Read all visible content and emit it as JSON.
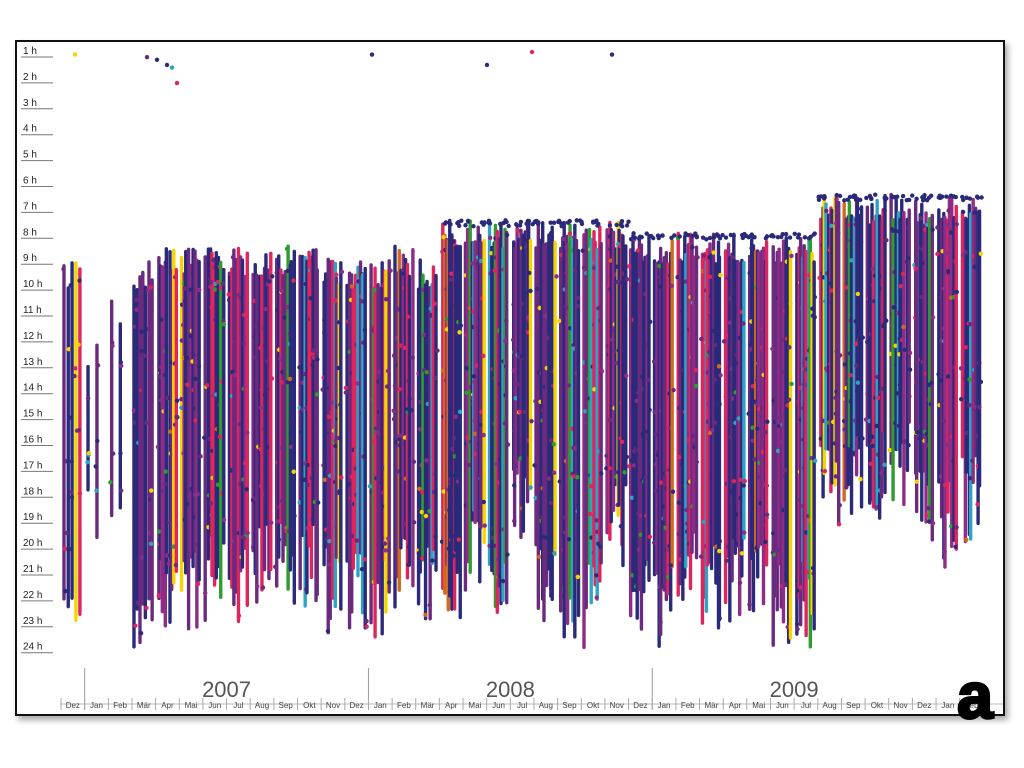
{
  "chart_data": {
    "type": "scatter",
    "y_ticks": [
      "1 h",
      "2 h",
      "3 h",
      "4 h",
      "5 h",
      "6 h",
      "7 h",
      "8 h",
      "9 h",
      "10 h",
      "11 h",
      "12 h",
      "13 h",
      "14 h",
      "15 h",
      "16 h",
      "17 h",
      "18 h",
      "19 h",
      "20 h",
      "21 h",
      "22 h",
      "23 h",
      "24 h"
    ],
    "year_labels": [
      "2007",
      "2008",
      "2009"
    ],
    "month_labels": [
      "Dez",
      "Jan",
      "Feb",
      "Mär",
      "Apr",
      "Mai",
      "Jun",
      "Jul",
      "Aug",
      "Sep",
      "Okt",
      "Nov",
      "Dez",
      "Jan",
      "Feb",
      "Mär",
      "Apr",
      "Mai",
      "Jun",
      "Jul",
      "Aug",
      "Sep",
      "Okt",
      "Nov",
      "Dez",
      "Jan",
      "Feb",
      "Mär",
      "Apr",
      "Mai",
      "Jun",
      "Jul",
      "Aug",
      "Sep",
      "Okt",
      "Nov",
      "Dez",
      "Jan",
      "Feb"
    ],
    "x_range": [
      "2006-12",
      "2010-02"
    ],
    "y_range_hours": [
      1,
      24
    ],
    "series_colors": [
      "#2b2a7a",
      "#6a2a7e",
      "#8e2d86",
      "#e0245e",
      "#f5d400",
      "#2fa3c4",
      "#2e9c2e",
      "#d06a1f"
    ],
    "monthly_activity": [
      {
        "month": "2006-12",
        "start_h": 9.0,
        "end_h": 23.5,
        "density": 0.5
      },
      {
        "month": "2007-01",
        "start_h": 12.0,
        "end_h": 20.5,
        "density": 0.15
      },
      {
        "month": "2007-02",
        "start_h": 10.5,
        "end_h": 20.0,
        "density": 0.15
      },
      {
        "month": "2007-03",
        "start_h": 9.0,
        "end_h": 24.0,
        "density": 0.7
      },
      {
        "month": "2007-04",
        "start_h": 8.5,
        "end_h": 24.0,
        "density": 0.85
      },
      {
        "month": "2007-05",
        "start_h": 8.5,
        "end_h": 23.5,
        "density": 0.9
      },
      {
        "month": "2007-06",
        "start_h": 8.5,
        "end_h": 23.0,
        "density": 0.9
      },
      {
        "month": "2007-07",
        "start_h": 8.5,
        "end_h": 23.0,
        "density": 0.9
      },
      {
        "month": "2007-08",
        "start_h": 8.5,
        "end_h": 22.5,
        "density": 0.9
      },
      {
        "month": "2007-09",
        "start_h": 8.5,
        "end_h": 22.5,
        "density": 0.9
      },
      {
        "month": "2007-10",
        "start_h": 8.5,
        "end_h": 22.5,
        "density": 0.9
      },
      {
        "month": "2007-11",
        "start_h": 9.0,
        "end_h": 23.5,
        "density": 0.9
      },
      {
        "month": "2007-12",
        "start_h": 9.0,
        "end_h": 23.5,
        "density": 0.85
      },
      {
        "month": "2008-01",
        "start_h": 9.0,
        "end_h": 24.0,
        "density": 0.9
      },
      {
        "month": "2008-02",
        "start_h": 8.5,
        "end_h": 23.0,
        "density": 0.9
      },
      {
        "month": "2008-03",
        "start_h": 9.0,
        "end_h": 23.0,
        "density": 0.9
      },
      {
        "month": "2008-04",
        "start_h": 7.5,
        "end_h": 23.0,
        "density": 0.95
      },
      {
        "month": "2008-05",
        "start_h": 7.5,
        "end_h": 22.0,
        "density": 0.95
      },
      {
        "month": "2008-06",
        "start_h": 7.5,
        "end_h": 23.5,
        "density": 0.95
      },
      {
        "month": "2008-07",
        "start_h": 7.5,
        "end_h": 20.0,
        "density": 0.95
      },
      {
        "month": "2008-08",
        "start_h": 7.5,
        "end_h": 23.5,
        "density": 0.95
      },
      {
        "month": "2008-09",
        "start_h": 7.5,
        "end_h": 24.0,
        "density": 0.95
      },
      {
        "month": "2008-10",
        "start_h": 7.5,
        "end_h": 24.0,
        "density": 0.95
      },
      {
        "month": "2008-11",
        "start_h": 7.5,
        "end_h": 21.0,
        "density": 0.95
      },
      {
        "month": "2008-12",
        "start_h": 8.0,
        "end_h": 23.5,
        "density": 0.95
      },
      {
        "month": "2009-01",
        "start_h": 8.0,
        "end_h": 24.0,
        "density": 0.95
      },
      {
        "month": "2009-02",
        "start_h": 8.0,
        "end_h": 23.0,
        "density": 0.95
      },
      {
        "month": "2009-03",
        "start_h": 8.0,
        "end_h": 23.5,
        "density": 0.95
      },
      {
        "month": "2009-04",
        "start_h": 8.0,
        "end_h": 23.0,
        "density": 0.95
      },
      {
        "month": "2009-05",
        "start_h": 8.0,
        "end_h": 23.0,
        "density": 0.95
      },
      {
        "month": "2009-06",
        "start_h": 8.0,
        "end_h": 24.0,
        "density": 0.95
      },
      {
        "month": "2009-07",
        "start_h": 8.0,
        "end_h": 24.0,
        "density": 0.95
      },
      {
        "month": "2009-08",
        "start_h": 6.5,
        "end_h": 19.5,
        "density": 0.95
      },
      {
        "month": "2009-09",
        "start_h": 6.5,
        "end_h": 19.0,
        "density": 0.95
      },
      {
        "month": "2009-10",
        "start_h": 6.5,
        "end_h": 19.0,
        "density": 0.95
      },
      {
        "month": "2009-11",
        "start_h": 6.5,
        "end_h": 18.5,
        "density": 0.9
      },
      {
        "month": "2009-12",
        "start_h": 6.5,
        "end_h": 20.0,
        "density": 0.9
      },
      {
        "month": "2010-01",
        "start_h": 6.5,
        "end_h": 21.0,
        "density": 0.9
      },
      {
        "month": "2010-02",
        "start_h": 6.5,
        "end_h": 20.0,
        "density": 0.85
      }
    ],
    "grid": false,
    "legend": "none",
    "annotation": "a"
  }
}
